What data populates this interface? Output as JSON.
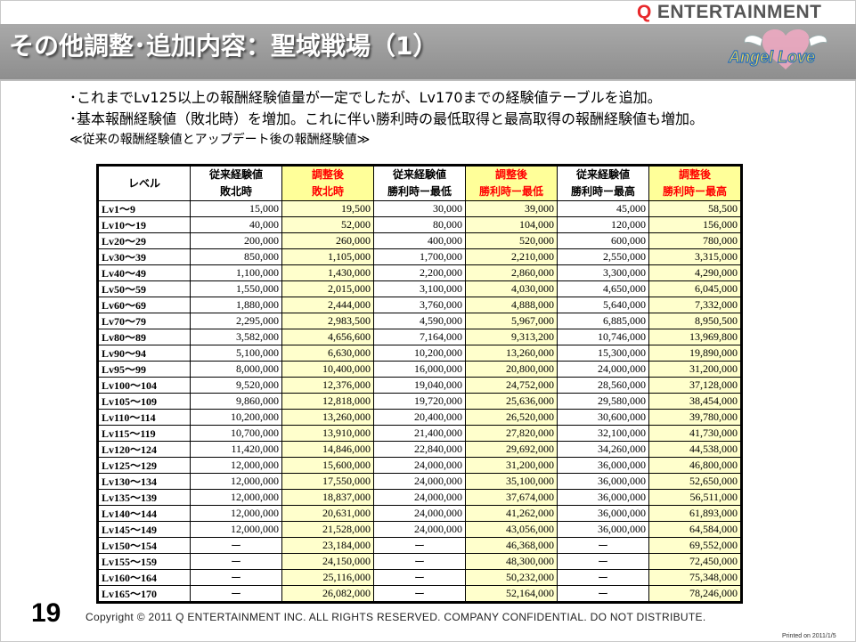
{
  "header": {
    "title": "その他調整･追加内容：聖域戦場（1）",
    "brand_q": "Q",
    "brand_rest": "ENTERTAINMENT",
    "logo_text": "Angel Love"
  },
  "bullets": [
    "･これまでLv125以上の報酬経験値量が一定でしたが、Lv170までの経験値テーブルを追加。",
    "･基本報酬経験値（敗北時）を増加。これに伴い勝利時の最低取得と最高取得の報酬経験値も増加。"
  ],
  "note": "≪従来の報酬経験値とアップデート後の報酬経験値≫",
  "table": {
    "headers": [
      {
        "line1": "レベル",
        "line2": ""
      },
      {
        "line1": "従来経験値",
        "line2": "敗北時"
      },
      {
        "line1": "調整後",
        "line2": "敗北時"
      },
      {
        "line1": "従来経験値",
        "line2": "勝利時ー最低"
      },
      {
        "line1": "調整後",
        "line2": "勝利時ー最低"
      },
      {
        "line1": "従来経験値",
        "line2": "勝利時ー最高"
      },
      {
        "line1": "調整後",
        "line2": "勝利時ー最高"
      }
    ],
    "rows": [
      [
        "Lv1〜9",
        "15,000",
        "19,500",
        "30,000",
        "39,000",
        "45,000",
        "58,500"
      ],
      [
        "Lv10〜19",
        "40,000",
        "52,000",
        "80,000",
        "104,000",
        "120,000",
        "156,000"
      ],
      [
        "Lv20〜29",
        "200,000",
        "260,000",
        "400,000",
        "520,000",
        "600,000",
        "780,000"
      ],
      [
        "Lv30〜39",
        "850,000",
        "1,105,000",
        "1,700,000",
        "2,210,000",
        "2,550,000",
        "3,315,000"
      ],
      [
        "Lv40〜49",
        "1,100,000",
        "1,430,000",
        "2,200,000",
        "2,860,000",
        "3,300,000",
        "4,290,000"
      ],
      [
        "Lv50〜59",
        "1,550,000",
        "2,015,000",
        "3,100,000",
        "4,030,000",
        "4,650,000",
        "6,045,000"
      ],
      [
        "Lv60〜69",
        "1,880,000",
        "2,444,000",
        "3,760,000",
        "4,888,000",
        "5,640,000",
        "7,332,000"
      ],
      [
        "Lv70〜79",
        "2,295,000",
        "2,983,500",
        "4,590,000",
        "5,967,000",
        "6,885,000",
        "8,950,500"
      ],
      [
        "Lv80〜89",
        "3,582,000",
        "4,656,600",
        "7,164,000",
        "9,313,200",
        "10,746,000",
        "13,969,800"
      ],
      [
        "Lv90〜94",
        "5,100,000",
        "6,630,000",
        "10,200,000",
        "13,260,000",
        "15,300,000",
        "19,890,000"
      ],
      [
        "Lv95〜99",
        "8,000,000",
        "10,400,000",
        "16,000,000",
        "20,800,000",
        "24,000,000",
        "31,200,000"
      ],
      [
        "Lv100〜104",
        "9,520,000",
        "12,376,000",
        "19,040,000",
        "24,752,000",
        "28,560,000",
        "37,128,000"
      ],
      [
        "Lv105〜109",
        "9,860,000",
        "12,818,000",
        "19,720,000",
        "25,636,000",
        "29,580,000",
        "38,454,000"
      ],
      [
        "Lv110〜114",
        "10,200,000",
        "13,260,000",
        "20,400,000",
        "26,520,000",
        "30,600,000",
        "39,780,000"
      ],
      [
        "Lv115〜119",
        "10,700,000",
        "13,910,000",
        "21,400,000",
        "27,820,000",
        "32,100,000",
        "41,730,000"
      ],
      [
        "Lv120〜124",
        "11,420,000",
        "14,846,000",
        "22,840,000",
        "29,692,000",
        "34,260,000",
        "44,538,000"
      ],
      [
        "Lv125〜129",
        "12,000,000",
        "15,600,000",
        "24,000,000",
        "31,200,000",
        "36,000,000",
        "46,800,000"
      ],
      [
        "Lv130〜134",
        "12,000,000",
        "17,550,000",
        "24,000,000",
        "35,100,000",
        "36,000,000",
        "52,650,000"
      ],
      [
        "Lv135〜139",
        "12,000,000",
        "18,837,000",
        "24,000,000",
        "37,674,000",
        "36,000,000",
        "56,511,000"
      ],
      [
        "Lv140〜144",
        "12,000,000",
        "20,631,000",
        "24,000,000",
        "41,262,000",
        "36,000,000",
        "61,893,000"
      ],
      [
        "Lv145〜149",
        "12,000,000",
        "21,528,000",
        "24,000,000",
        "43,056,000",
        "36,000,000",
        "64,584,000"
      ],
      [
        "Lv150〜154",
        "ー",
        "23,184,000",
        "ー",
        "46,368,000",
        "ー",
        "69,552,000"
      ],
      [
        "Lv155〜159",
        "ー",
        "24,150,000",
        "ー",
        "48,300,000",
        "ー",
        "72,450,000"
      ],
      [
        "Lv160〜164",
        "ー",
        "25,116,000",
        "ー",
        "50,232,000",
        "ー",
        "75,348,000"
      ],
      [
        "Lv165〜170",
        "ー",
        "26,082,000",
        "ー",
        "52,164,000",
        "ー",
        "78,246,000"
      ]
    ]
  },
  "footer": {
    "page_number": "19",
    "copyright": "Copyright © 2011 Q ENTERTAINMENT INC. ALL RIGHTS RESERVED.  COMPANY CONFIDENTIAL.  DO NOT DISTRIBUTE.",
    "printed": "Printed on 2011/1/5"
  },
  "colors": {
    "title_bar": "#999999",
    "adjusted_header_bg": "#ffff99",
    "adjusted_header_text": "#ff0000",
    "adjusted_cell_bg": "#ffffcc",
    "brand_q": "#e8282b"
  }
}
